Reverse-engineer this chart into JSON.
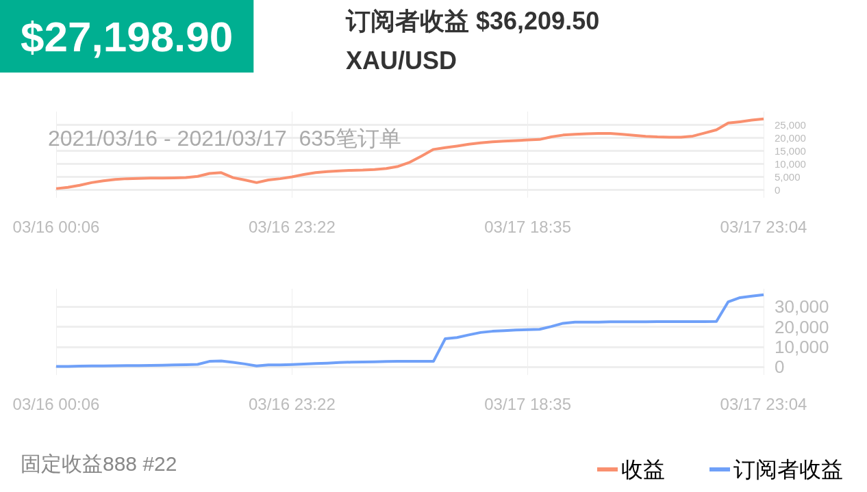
{
  "chart_data": [
    {
      "type": "line",
      "title": "$27,198.90",
      "subtitle": "订阅者收益 $36,209.50",
      "annotations": [
        "XAU/USD",
        "2021/03/16 - 2021/03/17  635笔订单"
      ],
      "categories": [
        "03/16 00:06",
        null,
        null,
        null,
        null,
        null,
        null,
        null,
        null,
        null,
        null,
        null,
        null,
        null,
        null,
        null,
        null,
        null,
        null,
        null,
        "03/16 23:22",
        null,
        null,
        null,
        null,
        null,
        null,
        null,
        null,
        null,
        null,
        null,
        null,
        null,
        null,
        null,
        null,
        null,
        null,
        null,
        "03/17 18:35",
        null,
        null,
        null,
        null,
        null,
        null,
        null,
        null,
        null,
        null,
        null,
        null,
        null,
        null,
        null,
        null,
        null,
        null,
        null,
        "03/17 23:04"
      ],
      "series": [
        {
          "name": "收益",
          "color": "#f9906f",
          "values": [
            500,
            1000,
            1800,
            2800,
            3500,
            4000,
            4300,
            4400,
            4500,
            4500,
            4600,
            4700,
            5200,
            6300,
            6600,
            4700,
            3800,
            2800,
            3800,
            4300,
            5000,
            5900,
            6600,
            7000,
            7300,
            7500,
            7600,
            7800,
            8200,
            9000,
            10600,
            13000,
            15500,
            16200,
            16800,
            17500,
            18000,
            18400,
            18700,
            18900,
            19100,
            19300,
            20300,
            21000,
            21300,
            21500,
            21600,
            21600,
            21300,
            20900,
            20500,
            20300,
            20200,
            20200,
            20600,
            21800,
            23000,
            25600,
            26100,
            26700,
            27200
          ]
        }
      ],
      "ylim": [
        -3000,
        30000
      ],
      "yticks": [
        0,
        {
          "value": 5000,
          "label": "5,000"
        },
        {
          "value": 10000,
          "label": "10,000"
        },
        {
          "value": 15000,
          "label": "15,000"
        },
        {
          "value": 20000,
          "label": "20,000"
        },
        {
          "value": 25000,
          "label": "25,000"
        }
      ],
      "grid": true,
      "legend": "bottom right"
    },
    {
      "type": "line",
      "annotations": [
        "固定收益888 #22"
      ],
      "categories": [
        "03/16 00:06",
        null,
        null,
        null,
        null,
        null,
        null,
        null,
        null,
        null,
        null,
        null,
        null,
        null,
        null,
        null,
        null,
        null,
        null,
        null,
        "03/16 23:22",
        null,
        null,
        null,
        null,
        null,
        null,
        null,
        null,
        null,
        null,
        null,
        null,
        null,
        null,
        null,
        null,
        null,
        null,
        null,
        "03/17 18:35",
        null,
        null,
        null,
        null,
        null,
        null,
        null,
        null,
        null,
        null,
        null,
        null,
        null,
        null,
        null,
        null,
        null,
        null,
        null,
        "03/17 23:04"
      ],
      "series": [
        {
          "name": "订阅者收益",
          "color": "#6fa0f8",
          "values": [
            300,
            300,
            400,
            500,
            500,
            600,
            700,
            700,
            800,
            900,
            1000,
            1100,
            1300,
            2800,
            3000,
            2300,
            1500,
            500,
            1000,
            1000,
            1200,
            1500,
            1700,
            1900,
            2200,
            2400,
            2500,
            2600,
            2700,
            2800,
            2800,
            2800,
            2800,
            14100,
            14700,
            16000,
            17200,
            17800,
            18100,
            18400,
            18600,
            18800,
            20200,
            21800,
            22400,
            22400,
            22400,
            22500,
            22500,
            22500,
            22500,
            22600,
            22600,
            22600,
            22600,
            22600,
            22700,
            32500,
            34600,
            35300,
            36000
          ]
        }
      ],
      "ylim": [
        -4000,
        39000
      ],
      "yticks": [
        0,
        {
          "value": 10000,
          "label": "10,000"
        },
        {
          "value": 20000,
          "label": "20,000"
        },
        {
          "value": 30000,
          "label": "30,000"
        }
      ],
      "grid": true,
      "legend": "bottom right"
    }
  ]
}
